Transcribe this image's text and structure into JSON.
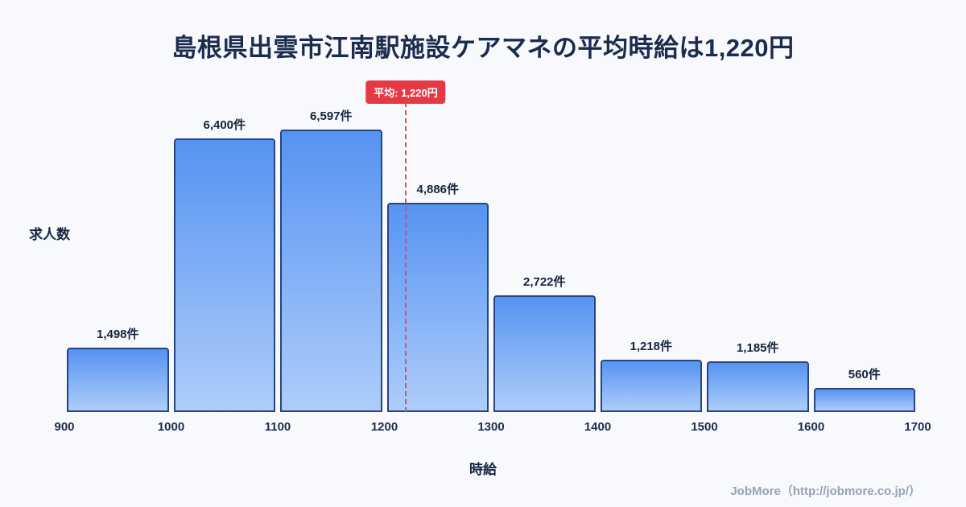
{
  "title": "島根県出雲市江南駅施設ケアマネの平均時給は1,220円",
  "ylabel": "求人数",
  "xlabel": "時給",
  "footer": "JobMore（http://jobmore.co.jp/）",
  "average_badge": "平均: 1,220円",
  "chart_data": {
    "type": "bar",
    "subtype": "histogram",
    "bin_edges": [
      900,
      1000,
      1100,
      1200,
      1300,
      1400,
      1500,
      1600,
      1700
    ],
    "categories": [
      "900-1000",
      "1000-1100",
      "1100-1200",
      "1200-1300",
      "1300-1400",
      "1400-1500",
      "1500-1600",
      "1600-1700"
    ],
    "values": [
      1498,
      6400,
      6597,
      4886,
      2722,
      1218,
      1185,
      560
    ],
    "value_labels": [
      "1,498件",
      "6,400件",
      "6,597件",
      "4,886件",
      "2,722件",
      "1,218件",
      "1,185件",
      "560件"
    ],
    "x_ticks": [
      "900",
      "1000",
      "1100",
      "1200",
      "1300",
      "1400",
      "1500",
      "1600",
      "1700"
    ],
    "average": 1220,
    "title": "島根県出雲市江南駅施設ケアマネの平均時給は1,220円",
    "xlabel": "時給",
    "ylabel": "求人数",
    "xlim": [
      900,
      1700
    ],
    "ylim": [
      0,
      7000
    ],
    "grid": false,
    "colors": {
      "bar_gradient_top": "#5693f2",
      "bar_gradient_bottom": "#aecdfa",
      "bar_border": "#27457f",
      "average_line": "#e84a4f",
      "average_badge_bg": "#e63946",
      "title_text": "#1c2c4e",
      "background": "#f7f9fc",
      "footer_text": "#98a2b3"
    }
  }
}
